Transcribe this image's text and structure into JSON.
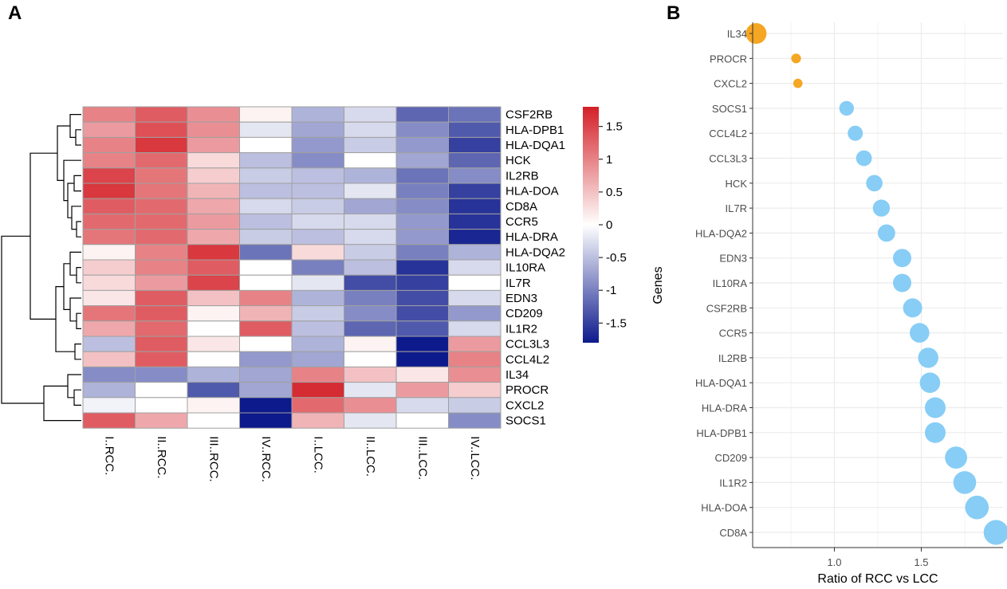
{
  "panels": {
    "a_label": "A",
    "b_label": "B"
  },
  "chart_data": [
    {
      "type": "heatmap",
      "panel": "A",
      "columns": [
        "I..RCC.",
        "II..RCC.",
        "III..RCC.",
        "IV..RCC.",
        "I..LCC.",
        "II..LCC.",
        "III..LCC.",
        "IV..LCC."
      ],
      "rows": [
        "CSF2RB",
        "HLA-DPB1",
        "HLA-DQA1",
        "HCK",
        "IL2RB",
        "HLA-DOA",
        "CD8A",
        "CCR5",
        "HLA-DRA",
        "HLA-DQA2",
        "IL10RA",
        "IL7R",
        "EDN3",
        "CD209",
        "IL1R2",
        "CCL3L3",
        "CCL4L2",
        "IL34",
        "PROCR",
        "CXCL2",
        "SOCS1"
      ],
      "values": [
        [
          1.0,
          1.3,
          0.9,
          0.1,
          -0.6,
          -0.3,
          -1.2,
          -1.1
        ],
        [
          0.8,
          1.4,
          0.9,
          -0.2,
          -0.7,
          -0.3,
          -0.9,
          -1.3
        ],
        [
          1.0,
          1.6,
          0.8,
          0.0,
          -0.8,
          -0.4,
          -0.8,
          -1.5
        ],
        [
          1.0,
          1.2,
          0.3,
          -0.5,
          -0.9,
          0.0,
          -0.7,
          -1.2
        ],
        [
          1.5,
          1.1,
          0.4,
          -0.4,
          -0.5,
          -0.6,
          -1.1,
          -0.9
        ],
        [
          1.6,
          1.1,
          0.6,
          -0.5,
          -0.5,
          -0.2,
          -1.0,
          -1.5
        ],
        [
          1.3,
          1.2,
          0.7,
          -0.3,
          -0.4,
          -0.7,
          -0.9,
          -1.6
        ],
        [
          1.2,
          1.2,
          0.8,
          -0.5,
          -0.3,
          -0.3,
          -0.8,
          -1.6
        ],
        [
          1.1,
          1.2,
          0.7,
          -0.4,
          -0.5,
          -0.3,
          -0.8,
          -1.7
        ],
        [
          0.1,
          1.0,
          1.6,
          -1.1,
          0.3,
          -0.4,
          -1.0,
          -0.6
        ],
        [
          0.4,
          1.0,
          1.3,
          0.0,
          -1.0,
          -0.5,
          -1.6,
          -0.3
        ],
        [
          0.3,
          0.8,
          1.5,
          0.0,
          -0.2,
          -1.4,
          -1.5,
          0.0
        ],
        [
          0.2,
          1.3,
          0.5,
          1.0,
          -0.6,
          -1.0,
          -1.4,
          -0.3
        ],
        [
          1.1,
          1.3,
          0.1,
          0.6,
          -0.4,
          -0.9,
          -1.4,
          -0.8
        ],
        [
          0.7,
          1.2,
          0.0,
          1.3,
          -0.5,
          -1.2,
          -1.3,
          -0.3
        ],
        [
          -0.5,
          1.3,
          0.2,
          0.0,
          -0.6,
          0.1,
          -1.9,
          0.8
        ],
        [
          0.5,
          1.3,
          0.0,
          -0.8,
          -0.7,
          0.0,
          -1.8,
          1.0
        ],
        [
          -0.9,
          -0.9,
          -0.6,
          -0.7,
          1.0,
          0.5,
          0.2,
          0.9
        ],
        [
          -0.6,
          0.0,
          -1.3,
          -0.7,
          1.7,
          -0.2,
          0.8,
          0.4
        ],
        [
          -0.1,
          0.0,
          0.1,
          -1.9,
          1.2,
          0.9,
          -0.3,
          -0.4
        ],
        [
          1.3,
          0.7,
          0.0,
          -1.9,
          0.6,
          -0.2,
          0.0,
          -0.9
        ]
      ],
      "colorbar": {
        "ticks": [
          "1.5",
          "1",
          "0.5",
          "0",
          "-0.5",
          "-1",
          "-1.5"
        ],
        "tick_values": [
          1.5,
          1,
          0.5,
          0,
          -0.5,
          -1,
          -1.5
        ],
        "range": [
          -1.8,
          1.8
        ]
      },
      "colors": {
        "low": "#0d1a8c",
        "mid": "#ffffff",
        "high": "#d31f26",
        "grid": "#a0a0a0"
      }
    },
    {
      "type": "scatter",
      "panel": "B",
      "genes": [
        "IL34",
        "PROCR",
        "CXCL2",
        "SOCS1",
        "CCL4L2",
        "CCL3L3",
        "HCK",
        "IL7R",
        "HLA-DQA2",
        "EDN3",
        "IL10RA",
        "CSF2RB",
        "CCR5",
        "IL2RB",
        "HLA-DQA1",
        "HLA-DRA",
        "HLA-DPB1",
        "CD209",
        "IL1R2",
        "HLA-DOA",
        "CD8A"
      ],
      "ratio": [
        0.55,
        0.78,
        0.79,
        1.07,
        1.12,
        1.17,
        1.23,
        1.27,
        1.3,
        1.39,
        1.39,
        1.45,
        1.49,
        1.54,
        1.55,
        1.58,
        1.58,
        1.7,
        1.75,
        1.82,
        1.93
      ],
      "groups": [
        "down",
        "down",
        "down",
        "up",
        "up",
        "up",
        "up",
        "up",
        "up",
        "up",
        "up",
        "up",
        "up",
        "up",
        "up",
        "up",
        "up",
        "up",
        "up",
        "up",
        "up"
      ],
      "xlabel": "Ratio of RCC vs LCC",
      "ylabel": "Genes",
      "xticks": [
        "1.0",
        "1.5"
      ],
      "xtick_values": [
        1.0,
        1.5
      ],
      "xlim": [
        0.53,
        1.97
      ],
      "colors": {
        "down": "#f5a623",
        "up": "#87cdf6",
        "grid": "#ebebeb"
      }
    }
  ]
}
